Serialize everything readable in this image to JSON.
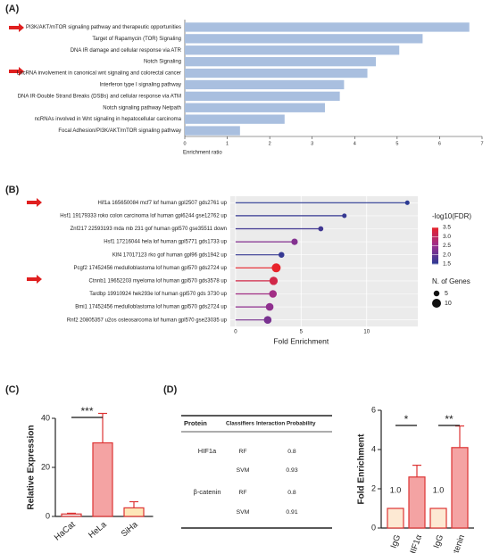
{
  "chart_data": [
    {
      "type": "hbar",
      "label": "(A)",
      "xlabel": "Enrichment ratio",
      "color": "#a9bfdf",
      "categories": [
        "PI3K/AKT/mTOR signaling pathway and therapeutic opportunities",
        "Target of Rapamycin (TOR) Signaling",
        "DNA IR damage and cellular response via ATR",
        "Notch Signaling",
        "LncRNA involvement in canonical wnt signaling and colorectal cancer",
        "Interferon type I signaling pathway",
        "DNA IR-Double Strand Breaks (DSBs) and cellular response via ATM",
        "Notch signaling pathway Netpath",
        "ncRNAs involved in Wnt signaling in hepatocellular carcinoma",
        "Focal Adhesion/PI3K/AKT/mTOR signaling pathway"
      ],
      "values": [
        6.7,
        5.6,
        5.05,
        4.5,
        4.3,
        3.75,
        3.65,
        3.3,
        2.35,
        1.3
      ],
      "xlim": [
        0,
        7
      ],
      "xticks": [
        0,
        1,
        2,
        3,
        4,
        5,
        6,
        7
      ]
    },
    {
      "type": "lollipop",
      "label": "(B)",
      "xlabel": "Fold Enrichment",
      "color_title": "-log10(FDR)",
      "size_title": "N. of Genes",
      "categories": [
        "Hif1a 165650084 mcf7 lof human gpl2507 gds2761 up",
        "Hsf1 19179333 roko colon carcinoma lof human gpl6244 gse12762 up",
        "Znf217 22593193 mda mb 231 gof human gpl570 gse35511 down",
        "Hsf1 17216044 hela lof human gpl5771 gds1733 up",
        "Klf4 17017123 rko gof human gpl96 gds1942 up",
        "Pcgf2 17452456 medulloblastoma lof human gpl570 gds2724 up",
        "Ctnnb1 19652203 myeloma lof human gpl570 gds3578 up",
        "Tardbp 19910924 hek293e lof human gpl570 gds 3730 up",
        "Bmi1 17452456 medulloblastoma lof human gpl570 gds2724 up",
        "Rnf2 20805357 u2os osteosarcoma lof human gpl570 gse23035 up"
      ],
      "values": [
        13.1,
        8.3,
        6.5,
        4.5,
        3.5,
        3.1,
        2.9,
        2.85,
        2.6,
        2.45
      ],
      "fdr": [
        1.4,
        1.6,
        1.7,
        2.3,
        1.6,
        3.5,
        3.2,
        2.6,
        2.4,
        2.2
      ],
      "genes": [
        3,
        3,
        4,
        6,
        5,
        10,
        9,
        8,
        8,
        8
      ],
      "colors": [
        "#2b3a93",
        "#9a2f8f",
        "#e8232a"
      ],
      "color_ticks": [
        1.5,
        {
          "value": 2,
          "label": "2.0"
        },
        2.5,
        {
          "value": 3,
          "label": "3.0"
        },
        3.5
      ],
      "size_ticks": [
        5,
        10
      ],
      "xlim": [
        -0.4,
        13.9
      ],
      "xticks": [
        0,
        5,
        10
      ]
    },
    {
      "type": "bar",
      "label": "(C)",
      "ylabel": "Relative Expression",
      "categories": [
        "HaCat",
        "HeLa",
        "SiHa"
      ],
      "values": [
        1,
        30,
        3.5
      ],
      "errors": [
        0.3,
        12,
        2.5
      ],
      "colors": [
        "#f2f2f2",
        "#f4a3a3",
        "#fde7b8"
      ],
      "annotations": [
        "***"
      ],
      "ylim": [
        0,
        40
      ],
      "yticks": [
        0,
        20,
        40
      ]
    },
    {
      "type": "bar",
      "ylabel": "Fold Enrichment",
      "categories": [
        "IgG",
        "HIF1α",
        "IgG",
        "β-catenin"
      ],
      "values": [
        1,
        2.6,
        1,
        4.1
      ],
      "errors": [
        0,
        0.6,
        0,
        1.1
      ],
      "value_labels": [
        "1.0",
        null,
        "1.0",
        null
      ],
      "colors": [
        "#fde9d3",
        "#f4a3a3",
        "#fde9d3",
        "#f4a3a3"
      ],
      "annotations": [
        "*",
        "**"
      ],
      "ylim": [
        0,
        6
      ],
      "yticks": [
        0,
        2,
        4,
        6
      ]
    }
  ],
  "table": {
    "label": "(D)",
    "header": [
      "Protein",
      "Classifiers",
      "Interaction Probability"
    ],
    "rows": [
      [
        "HIF1a",
        "RF",
        "0.8"
      ],
      [
        "",
        "SVM",
        "0.93"
      ],
      [
        "β-catenin",
        "RF",
        "0.8"
      ],
      [
        "",
        "SVM",
        "0.91"
      ]
    ]
  }
}
